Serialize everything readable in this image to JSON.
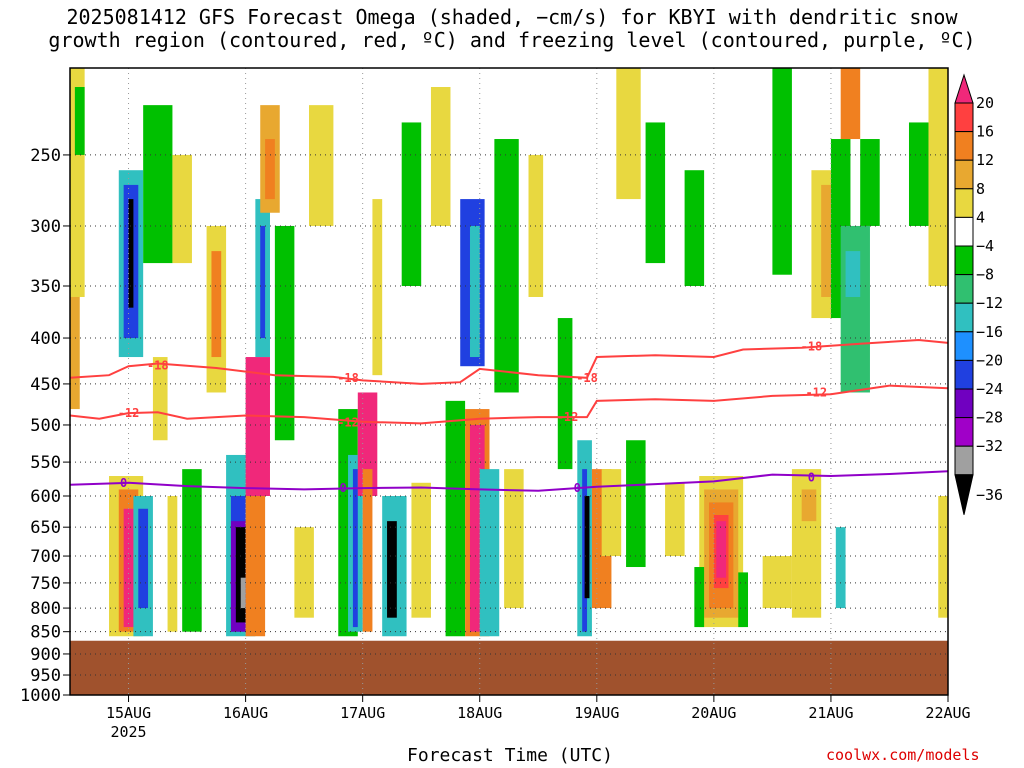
{
  "title_lines": [
    "2025081412 GFS Forecast Omega (shaded, −cm/s) for KBYI with dendritic snow",
    "growth region (contoured, red, ºC) and freezing level (contoured, purple, ºC)"
  ],
  "credit": "coolwx.com/models",
  "chart_data": {
    "type": "heatmap",
    "title": "2025081412 GFS Forecast Omega (shaded, −cm/s) for KBYI with dendritic snow growth region (contoured, red, ºC) and freezing level (contoured, purple, ºC)",
    "xlabel": "Forecast Time (UTC)",
    "ylabel": "",
    "x_ticks": [
      "15AUG",
      "16AUG",
      "17AUG",
      "18AUG",
      "19AUG",
      "20AUG",
      "21AUG",
      "22AUG"
    ],
    "x_sublabel": "2025",
    "xlim": [
      "2025-08-14 12:00",
      "2025-08-22 00:00"
    ],
    "y_ticks": [
      250,
      300,
      350,
      400,
      450,
      500,
      550,
      600,
      650,
      700,
      750,
      800,
      850,
      900,
      950,
      1000
    ],
    "ylim": [
      200,
      1000
    ],
    "y_scale": "log-pressure",
    "grid": true,
    "colorbar": {
      "labels": [
        "20",
        "16",
        "12",
        "8",
        "4",
        "−4",
        "−8",
        "−12",
        "−16",
        "−20",
        "−24",
        "−28",
        "−32",
        "−36"
      ],
      "colors": [
        "#f0287a",
        "#ff4040",
        "#f08020",
        "#e8a830",
        "#e8d840",
        "#ffffff",
        "#00c000",
        "#30c070",
        "#30c0c0",
        "#1e90ff",
        "#2040e0",
        "#7000c0",
        "#a000c8",
        "#a0a0a0",
        "#000000"
      ]
    },
    "ground_pressure": 870,
    "contours": [
      {
        "name": "-18",
        "color": "#ff4040",
        "points": [
          [
            "2025-08-14 12:00",
            443
          ],
          [
            "2025-08-14 20:00",
            440
          ],
          [
            "2025-08-15 00:00",
            430
          ],
          [
            "2025-08-15 06:00",
            427
          ],
          [
            "2025-08-15 18:00",
            432
          ],
          [
            "2025-08-16 06:00",
            440
          ],
          [
            "2025-08-16 18:00",
            442
          ],
          [
            "2025-08-17 00:00",
            446
          ],
          [
            "2025-08-17 12:00",
            450
          ],
          [
            "2025-08-17 20:00",
            448
          ],
          [
            "2025-08-18 00:00",
            433
          ],
          [
            "2025-08-18 12:00",
            440
          ],
          [
            "2025-08-18 22:00",
            443
          ],
          [
            "2025-08-19 00:00",
            420
          ],
          [
            "2025-08-19 12:00",
            418
          ],
          [
            "2025-08-20 00:00",
            420
          ],
          [
            "2025-08-20 06:00",
            412
          ],
          [
            "2025-08-20 18:00",
            410
          ],
          [
            "2025-08-21 06:00",
            406
          ],
          [
            "2025-08-21 18:00",
            402
          ],
          [
            "2025-08-22 00:00",
            405
          ]
        ],
        "labels": [
          [
            "2025-08-15 06:00",
            429
          ],
          [
            "2025-08-16 21:00",
            443
          ],
          [
            "2025-08-18 22:00",
            443
          ],
          [
            "2025-08-20 20:00",
            409
          ]
        ]
      },
      {
        "name": "-12",
        "color": "#ff4040",
        "points": [
          [
            "2025-08-14 12:00",
            488
          ],
          [
            "2025-08-14 18:00",
            492
          ],
          [
            "2025-08-15 00:00",
            485
          ],
          [
            "2025-08-15 06:00",
            484
          ],
          [
            "2025-08-15 12:00",
            492
          ],
          [
            "2025-08-16 00:00",
            488
          ],
          [
            "2025-08-16 12:00",
            490
          ],
          [
            "2025-08-17 00:00",
            496
          ],
          [
            "2025-08-17 12:00",
            498
          ],
          [
            "2025-08-18 00:00",
            492
          ],
          [
            "2025-08-18 12:00",
            490
          ],
          [
            "2025-08-18 22:00",
            490
          ],
          [
            "2025-08-19 00:00",
            470
          ],
          [
            "2025-08-19 12:00",
            468
          ],
          [
            "2025-08-20 00:00",
            470
          ],
          [
            "2025-08-20 12:00",
            464
          ],
          [
            "2025-08-21 00:00",
            462
          ],
          [
            "2025-08-21 12:00",
            452
          ],
          [
            "2025-08-22 00:00",
            455
          ]
        ],
        "labels": [
          [
            "2025-08-15 00:00",
            485
          ],
          [
            "2025-08-16 21:00",
            497
          ],
          [
            "2025-08-18 18:00",
            490
          ],
          [
            "2025-08-20 21:00",
            460
          ]
        ]
      },
      {
        "name": "0",
        "color": "#9000c8",
        "points": [
          [
            "2025-08-14 12:00",
            583
          ],
          [
            "2025-08-15 00:00",
            580
          ],
          [
            "2025-08-15 12:00",
            585
          ],
          [
            "2025-08-16 00:00",
            588
          ],
          [
            "2025-08-16 12:00",
            590
          ],
          [
            "2025-08-17 00:00",
            588
          ],
          [
            "2025-08-17 12:00",
            587
          ],
          [
            "2025-08-18 00:00",
            590
          ],
          [
            "2025-08-18 12:00",
            592
          ],
          [
            "2025-08-19 00:00",
            586
          ],
          [
            "2025-08-19 12:00",
            582
          ],
          [
            "2025-08-20 00:00",
            578
          ],
          [
            "2025-08-20 12:00",
            568
          ],
          [
            "2025-08-21 00:00",
            570
          ],
          [
            "2025-08-21 12:00",
            567
          ],
          [
            "2025-08-22 00:00",
            563
          ]
        ],
        "labels": [
          [
            "2025-08-14 23:00",
            580
          ],
          [
            "2025-08-16 20:00",
            588
          ],
          [
            "2025-08-18 20:00",
            588
          ],
          [
            "2025-08-20 20:00",
            572
          ]
        ]
      }
    ],
    "shaded_cells": [
      [
        "2025-08-14 12:00",
        "2025-08-14 15:00",
        360,
        200,
        "#e8d840"
      ],
      [
        "2025-08-14 12:00",
        "2025-08-14 14:00",
        480,
        360,
        "#e8a830"
      ],
      [
        "2025-08-14 13:00",
        "2025-08-14 15:00",
        250,
        210,
        "#00c000"
      ],
      [
        "2025-08-14 20:00",
        "2025-08-15 03:00",
        860,
        570,
        "#e8d840"
      ],
      [
        "2025-08-14 22:00",
        "2025-08-15 02:00",
        850,
        590,
        "#f08020"
      ],
      [
        "2025-08-14 23:00",
        "2025-08-15 01:00",
        840,
        620,
        "#f0287a"
      ],
      [
        "2025-08-14 22:00",
        "2025-08-15 03:00",
        420,
        260,
        "#30c0c0"
      ],
      [
        "2025-08-14 23:00",
        "2025-08-15 02:00",
        400,
        270,
        "#2040e0"
      ],
      [
        "2025-08-15 00:00",
        "2025-08-15 01:00",
        370,
        280,
        "#000000"
      ],
      [
        "2025-08-15 01:00",
        "2025-08-15 05:00",
        860,
        600,
        "#30c0c0"
      ],
      [
        "2025-08-15 02:00",
        "2025-08-15 04:00",
        800,
        620,
        "#2040e0"
      ],
      [
        "2025-08-15 03:00",
        "2025-08-15 09:00",
        330,
        220,
        "#00c000"
      ],
      [
        "2025-08-15 05:00",
        "2025-08-15 08:00",
        520,
        420,
        "#e8d840"
      ],
      [
        "2025-08-15 08:00",
        "2025-08-15 10:00",
        850,
        600,
        "#e8d840"
      ],
      [
        "2025-08-15 09:00",
        "2025-08-15 13:00",
        330,
        250,
        "#e8d840"
      ],
      [
        "2025-08-15 11:00",
        "2025-08-15 15:00",
        850,
        560,
        "#00c000"
      ],
      [
        "2025-08-15 16:00",
        "2025-08-15 20:00",
        460,
        300,
        "#e8d840"
      ],
      [
        "2025-08-15 17:00",
        "2025-08-15 19:00",
        420,
        320,
        "#f08020"
      ],
      [
        "2025-08-15 20:00",
        "2025-08-16 02:00",
        860,
        540,
        "#30c0c0"
      ],
      [
        "2025-08-15 21:00",
        "2025-08-16 01:00",
        850,
        600,
        "#2040e0"
      ],
      [
        "2025-08-15 21:00",
        "2025-08-16 01:00",
        850,
        640,
        "#7000c0"
      ],
      [
        "2025-08-15 22:00",
        "2025-08-16 00:00",
        830,
        650,
        "#000000"
      ],
      [
        "2025-08-15 23:00",
        "2025-08-16 00:00",
        800,
        740,
        "#a0a0a0"
      ],
      [
        "2025-08-16 00:00",
        "2025-08-16 05:00",
        600,
        420,
        "#f0287a"
      ],
      [
        "2025-08-16 00:00",
        "2025-08-16 04:00",
        860,
        600,
        "#f08020"
      ],
      [
        "2025-08-16 02:00",
        "2025-08-16 05:00",
        420,
        280,
        "#30c0c0"
      ],
      [
        "2025-08-16 03:00",
        "2025-08-16 04:00",
        400,
        300,
        "#2040e0"
      ],
      [
        "2025-08-16 03:00",
        "2025-08-16 07:00",
        290,
        220,
        "#e8a830"
      ],
      [
        "2025-08-16 04:00",
        "2025-08-16 06:00",
        280,
        240,
        "#f08020"
      ],
      [
        "2025-08-16 06:00",
        "2025-08-16 10:00",
        520,
        300,
        "#00c000"
      ],
      [
        "2025-08-16 10:00",
        "2025-08-16 14:00",
        820,
        650,
        "#e8d840"
      ],
      [
        "2025-08-16 13:00",
        "2025-08-16 18:00",
        300,
        220,
        "#e8d840"
      ],
      [
        "2025-08-16 19:00",
        "2025-08-16 23:00",
        860,
        480,
        "#00c000"
      ],
      [
        "2025-08-16 21:00",
        "2025-08-17 00:00",
        850,
        540,
        "#30c0c0"
      ],
      [
        "2025-08-16 22:00",
        "2025-08-16 23:00",
        840,
        560,
        "#2040e0"
      ],
      [
        "2025-08-16 23:00",
        "2025-08-17 03:00",
        600,
        460,
        "#f0287a"
      ],
      [
        "2025-08-17 00:00",
        "2025-08-17 02:00",
        850,
        560,
        "#f08020"
      ],
      [
        "2025-08-17 02:00",
        "2025-08-17 04:00",
        440,
        280,
        "#e8d840"
      ],
      [
        "2025-08-17 04:00",
        "2025-08-17 09:00",
        860,
        600,
        "#30c0c0"
      ],
      [
        "2025-08-17 05:00",
        "2025-08-17 07:00",
        820,
        640,
        "#000000"
      ],
      [
        "2025-08-17 08:00",
        "2025-08-17 12:00",
        350,
        230,
        "#00c000"
      ],
      [
        "2025-08-17 10:00",
        "2025-08-17 14:00",
        820,
        580,
        "#e8d840"
      ],
      [
        "2025-08-17 14:00",
        "2025-08-17 18:00",
        300,
        210,
        "#e8d840"
      ],
      [
        "2025-08-17 17:00",
        "2025-08-17 21:00",
        860,
        470,
        "#00c000"
      ],
      [
        "2025-08-17 20:00",
        "2025-08-18 01:00",
        430,
        280,
        "#2040e0"
      ],
      [
        "2025-08-17 22:00",
        "2025-08-18 00:00",
        420,
        300,
        "#30c0c0"
      ],
      [
        "2025-08-17 21:00",
        "2025-08-18 02:00",
        860,
        480,
        "#f08020"
      ],
      [
        "2025-08-17 22:00",
        "2025-08-18 01:00",
        850,
        500,
        "#f0287a"
      ],
      [
        "2025-08-18 00:00",
        "2025-08-18 04:00",
        860,
        560,
        "#30c0c0"
      ],
      [
        "2025-08-18 03:00",
        "2025-08-18 08:00",
        460,
        240,
        "#00c000"
      ],
      [
        "2025-08-18 05:00",
        "2025-08-18 09:00",
        800,
        560,
        "#e8d840"
      ],
      [
        "2025-08-18 10:00",
        "2025-08-18 13:00",
        360,
        250,
        "#e8d840"
      ],
      [
        "2025-08-18 16:00",
        "2025-08-18 19:00",
        560,
        380,
        "#00c000"
      ],
      [
        "2025-08-18 20:00",
        "2025-08-18 23:00",
        860,
        520,
        "#30c0c0"
      ],
      [
        "2025-08-18 21:00",
        "2025-08-18 22:00",
        850,
        560,
        "#2040e0"
      ],
      [
        "2025-08-18 21:30",
        "2025-08-18 22:30",
        780,
        600,
        "#000000"
      ],
      [
        "2025-08-18 23:00",
        "2025-08-19 03:00",
        800,
        560,
        "#f08020"
      ],
      [
        "2025-08-19 01:00",
        "2025-08-19 05:00",
        700,
        560,
        "#e8d840"
      ],
      [
        "2025-08-19 04:00",
        "2025-08-19 09:00",
        280,
        200,
        "#e8d840"
      ],
      [
        "2025-08-19 06:00",
        "2025-08-19 10:00",
        720,
        520,
        "#00c000"
      ],
      [
        "2025-08-19 10:00",
        "2025-08-19 14:00",
        330,
        230,
        "#00c000"
      ],
      [
        "2025-08-19 14:00",
        "2025-08-19 18:00",
        700,
        580,
        "#e8d840"
      ],
      [
        "2025-08-19 18:00",
        "2025-08-19 22:00",
        350,
        260,
        "#00c000"
      ],
      [
        "2025-08-19 21:00",
        "2025-08-20 06:00",
        840,
        570,
        "#e8d840"
      ],
      [
        "2025-08-19 22:00",
        "2025-08-20 05:00",
        820,
        590,
        "#e8a830"
      ],
      [
        "2025-08-19 23:00",
        "2025-08-20 04:00",
        800,
        610,
        "#f08020"
      ],
      [
        "2025-08-20 00:00",
        "2025-08-20 03:00",
        760,
        630,
        "#ff4040"
      ],
      [
        "2025-08-20 00:30",
        "2025-08-20 02:30",
        740,
        640,
        "#f0287a"
      ],
      [
        "2025-08-19 20:00",
        "2025-08-19 22:00",
        840,
        720,
        "#00c000"
      ],
      [
        "2025-08-20 05:00",
        "2025-08-20 07:00",
        840,
        730,
        "#00c000"
      ],
      [
        "2025-08-20 12:00",
        "2025-08-20 16:00",
        340,
        200,
        "#00c000"
      ],
      [
        "2025-08-20 10:00",
        "2025-08-20 16:00",
        800,
        700,
        "#e8d840"
      ],
      [
        "2025-08-20 16:00",
        "2025-08-20 22:00",
        820,
        560,
        "#e8d840"
      ],
      [
        "2025-08-20 18:00",
        "2025-08-20 21:00",
        640,
        590,
        "#e8a830"
      ],
      [
        "2025-08-20 20:00",
        "2025-08-21 00:00",
        380,
        260,
        "#e8d840"
      ],
      [
        "2025-08-20 22:00",
        "2025-08-21 00:00",
        360,
        270,
        "#e8a830"
      ],
      [
        "2025-08-21 00:00",
        "2025-08-21 04:00",
        380,
        240,
        "#00c000"
      ],
      [
        "2025-08-21 02:00",
        "2025-08-21 08:00",
        460,
        300,
        "#30c070"
      ],
      [
        "2025-08-21 03:00",
        "2025-08-21 06:00",
        360,
        320,
        "#30c0c0"
      ],
      [
        "2025-08-21 02:00",
        "2025-08-21 06:00",
        240,
        200,
        "#f08020"
      ],
      [
        "2025-08-21 01:00",
        "2025-08-21 03:00",
        800,
        650,
        "#30c0c0"
      ],
      [
        "2025-08-21 06:00",
        "2025-08-21 10:00",
        300,
        240,
        "#00c000"
      ],
      [
        "2025-08-21 16:00",
        "2025-08-21 20:00",
        300,
        230,
        "#00c000"
      ],
      [
        "2025-08-21 20:00",
        "2025-08-22 00:00",
        350,
        200,
        "#e8d840"
      ],
      [
        "2025-08-21 22:00",
        "2025-08-22 00:00",
        820,
        600,
        "#e8d840"
      ]
    ]
  }
}
